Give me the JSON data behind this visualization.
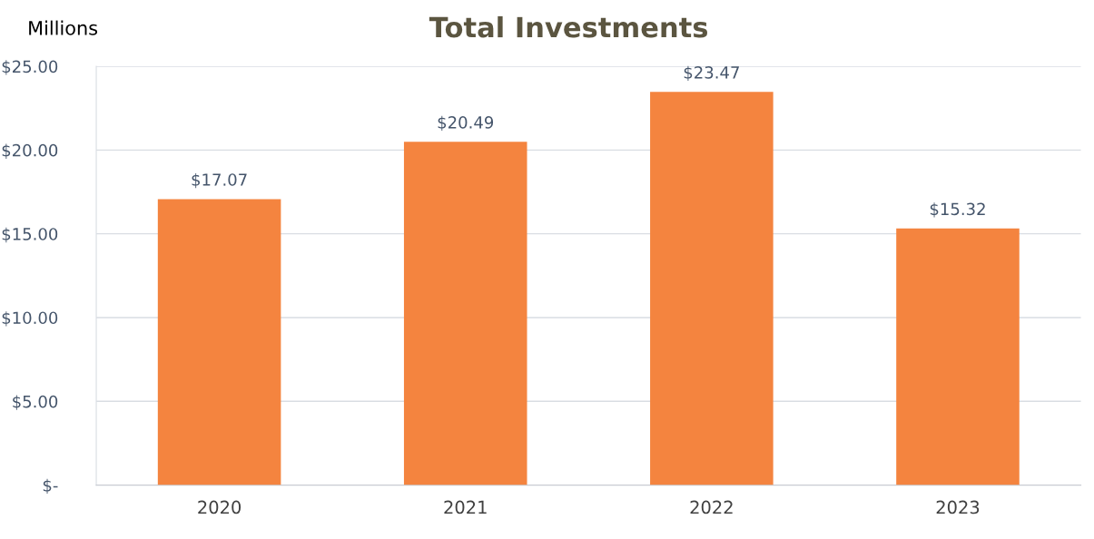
{
  "chart_data": {
    "type": "bar",
    "title": "Total Investments",
    "ylabel": "Millions",
    "categories": [
      "2020",
      "2021",
      "2022",
      "2023"
    ],
    "values": [
      17.07,
      20.49,
      23.47,
      15.32
    ],
    "value_labels": [
      "$17.07",
      "$20.49",
      "$23.47",
      "$15.32"
    ],
    "color": "#f4843f",
    "ylim": [
      0,
      25
    ],
    "yticks": [
      {
        "value": 0,
        "label": "$-"
      },
      {
        "value": 5,
        "label": "$5.00"
      },
      {
        "value": 10,
        "label": "$10.00"
      },
      {
        "value": 15,
        "label": "$15.00"
      },
      {
        "value": 20,
        "label": "$20.00"
      },
      {
        "value": 25,
        "label": "$25.00"
      }
    ],
    "grid": "y"
  }
}
